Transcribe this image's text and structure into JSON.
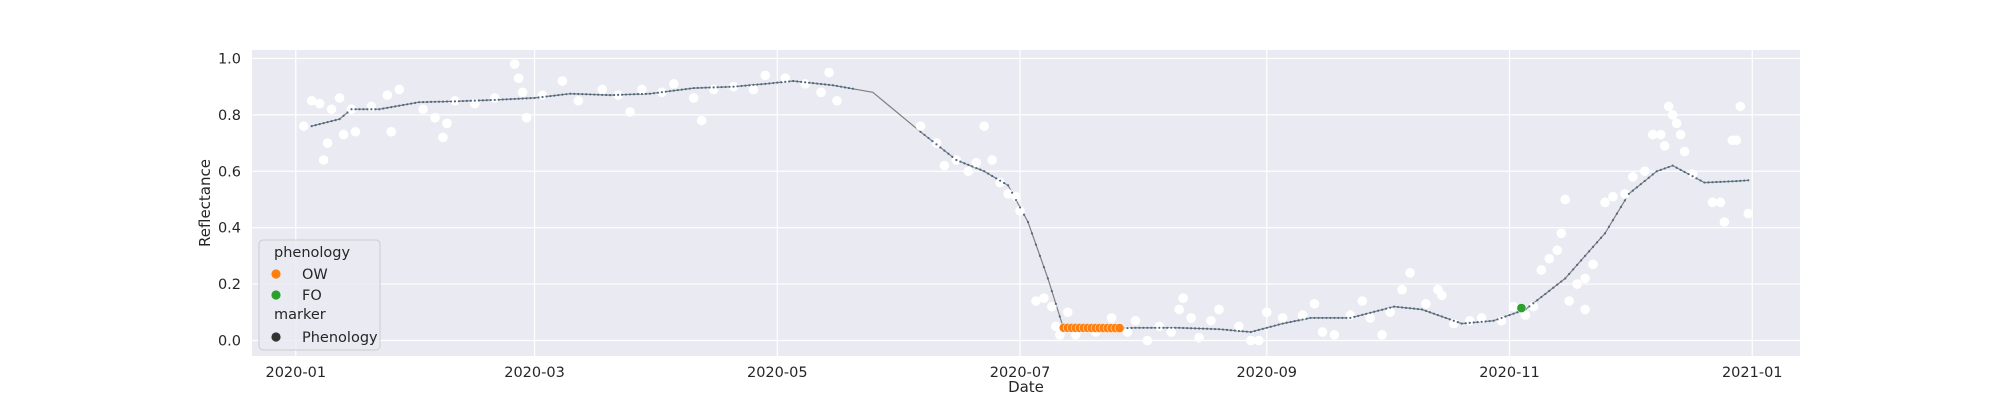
{
  "chart_data": {
    "type": "scatter",
    "title": "",
    "xlabel": "Date",
    "ylabel": "Reflectance",
    "x_type": "date",
    "xlim": [
      "2019-12-21",
      "2021-01-13"
    ],
    "ylim": [
      -0.055,
      1.03
    ],
    "x_ticks": [
      "2020-01",
      "2020-03",
      "2020-05",
      "2020-07",
      "2020-09",
      "2020-11",
      "2021-01"
    ],
    "y_ticks": [
      "0.0",
      "0.2",
      "0.4",
      "0.6",
      "0.8",
      "1.0"
    ],
    "grid": true,
    "legend_position": "lower-left",
    "colors": {
      "background": "#eaeaf2",
      "grid": "#ffffff",
      "raw_points": "#ffffff",
      "fitted_line": "#808080",
      "fitted_points": "#4c6a82",
      "OW": "#ff7f0e",
      "FO": "#2ca02c",
      "marker_Phenology": "#333333"
    },
    "legend": {
      "title_phenology": "phenology",
      "entries_phenology": [
        "OW",
        "FO"
      ],
      "title_marker": "marker",
      "entries_marker": [
        "Phenology"
      ]
    },
    "fitted_curve": [
      [
        "2020-01-05",
        0.76
      ],
      [
        "2020-01-12",
        0.785
      ],
      [
        "2020-01-15",
        0.82
      ],
      [
        "2020-01-22",
        0.82
      ],
      [
        "2020-02-01",
        0.845
      ],
      [
        "2020-02-10",
        0.848
      ],
      [
        "2020-02-20",
        0.853
      ],
      [
        "2020-03-01",
        0.86
      ],
      [
        "2020-03-10",
        0.875
      ],
      [
        "2020-03-20",
        0.87
      ],
      [
        "2020-03-30",
        0.875
      ],
      [
        "2020-04-10",
        0.895
      ],
      [
        "2020-04-20",
        0.9
      ],
      [
        "2020-04-28",
        0.91
      ],
      [
        "2020-05-05",
        0.92
      ],
      [
        "2020-05-15",
        0.905
      ],
      [
        "2020-05-25",
        0.88
      ],
      [
        "2020-06-06",
        0.74
      ],
      [
        "2020-06-15",
        0.64
      ],
      [
        "2020-06-22",
        0.6
      ],
      [
        "2020-06-28",
        0.55
      ],
      [
        "2020-07-03",
        0.42
      ],
      [
        "2020-07-08",
        0.22
      ],
      [
        "2020-07-12",
        0.04
      ],
      [
        "2020-07-20",
        0.04
      ],
      [
        "2020-07-30",
        0.045
      ],
      [
        "2020-08-10",
        0.045
      ],
      [
        "2020-08-20",
        0.04
      ],
      [
        "2020-08-28",
        0.03
      ],
      [
        "2020-09-05",
        0.06
      ],
      [
        "2020-09-12",
        0.08
      ],
      [
        "2020-09-22",
        0.08
      ],
      [
        "2020-10-03",
        0.12
      ],
      [
        "2020-10-10",
        0.11
      ],
      [
        "2020-10-20",
        0.06
      ],
      [
        "2020-10-28",
        0.07
      ],
      [
        "2020-11-05",
        0.11
      ],
      [
        "2020-11-15",
        0.22
      ],
      [
        "2020-11-25",
        0.38
      ],
      [
        "2020-12-01",
        0.52
      ],
      [
        "2020-12-08",
        0.6
      ],
      [
        "2020-12-12",
        0.62
      ],
      [
        "2020-12-20",
        0.56
      ],
      [
        "2020-12-28",
        0.565
      ],
      [
        "2020-12-31",
        0.568
      ]
    ],
    "raw_points": [
      [
        "2020-01-03",
        0.76
      ],
      [
        "2020-01-05",
        0.85
      ],
      [
        "2020-01-07",
        0.84
      ],
      [
        "2020-01-08",
        0.64
      ],
      [
        "2020-01-09",
        0.7
      ],
      [
        "2020-01-10",
        0.82
      ],
      [
        "2020-01-12",
        0.86
      ],
      [
        "2020-01-13",
        0.73
      ],
      [
        "2020-01-15",
        0.82
      ],
      [
        "2020-01-16",
        0.74
      ],
      [
        "2020-01-20",
        0.83
      ],
      [
        "2020-01-24",
        0.87
      ],
      [
        "2020-01-25",
        0.74
      ],
      [
        "2020-01-27",
        0.89
      ],
      [
        "2020-02-02",
        0.82
      ],
      [
        "2020-02-05",
        0.79
      ],
      [
        "2020-02-07",
        0.72
      ],
      [
        "2020-02-08",
        0.77
      ],
      [
        "2020-02-10",
        0.85
      ],
      [
        "2020-02-15",
        0.84
      ],
      [
        "2020-02-20",
        0.86
      ],
      [
        "2020-02-25",
        0.98
      ],
      [
        "2020-02-26",
        0.93
      ],
      [
        "2020-02-27",
        0.88
      ],
      [
        "2020-02-28",
        0.79
      ],
      [
        "2020-03-03",
        0.87
      ],
      [
        "2020-03-08",
        0.92
      ],
      [
        "2020-03-12",
        0.85
      ],
      [
        "2020-03-18",
        0.89
      ],
      [
        "2020-03-22",
        0.87
      ],
      [
        "2020-03-25",
        0.81
      ],
      [
        "2020-03-28",
        0.89
      ],
      [
        "2020-04-02",
        0.88
      ],
      [
        "2020-04-05",
        0.91
      ],
      [
        "2020-04-10",
        0.86
      ],
      [
        "2020-04-12",
        0.78
      ],
      [
        "2020-04-15",
        0.89
      ],
      [
        "2020-04-20",
        0.9
      ],
      [
        "2020-04-25",
        0.89
      ],
      [
        "2020-04-28",
        0.94
      ],
      [
        "2020-05-03",
        0.93
      ],
      [
        "2020-05-08",
        0.91
      ],
      [
        "2020-05-12",
        0.88
      ],
      [
        "2020-05-14",
        0.95
      ],
      [
        "2020-05-16",
        0.85
      ],
      [
        "2020-06-06",
        0.76
      ],
      [
        "2020-06-10",
        0.7
      ],
      [
        "2020-06-12",
        0.62
      ],
      [
        "2020-06-15",
        0.64
      ],
      [
        "2020-06-18",
        0.6
      ],
      [
        "2020-06-20",
        0.63
      ],
      [
        "2020-06-22",
        0.76
      ],
      [
        "2020-06-24",
        0.64
      ],
      [
        "2020-06-26",
        0.56
      ],
      [
        "2020-06-28",
        0.52
      ],
      [
        "2020-06-30",
        0.51
      ],
      [
        "2020-07-01",
        0.46
      ],
      [
        "2020-07-05",
        0.14
      ],
      [
        "2020-07-07",
        0.15
      ],
      [
        "2020-07-09",
        0.12
      ],
      [
        "2020-07-10",
        0.05
      ],
      [
        "2020-07-11",
        0.02
      ],
      [
        "2020-07-13",
        0.1
      ],
      [
        "2020-07-15",
        0.02
      ],
      [
        "2020-07-20",
        0.03
      ],
      [
        "2020-07-24",
        0.08
      ],
      [
        "2020-07-28",
        0.03
      ],
      [
        "2020-07-30",
        0.07
      ],
      [
        "2020-08-02",
        0.0
      ],
      [
        "2020-08-05",
        0.05
      ],
      [
        "2020-08-08",
        0.03
      ],
      [
        "2020-08-10",
        0.11
      ],
      [
        "2020-08-11",
        0.15
      ],
      [
        "2020-08-13",
        0.08
      ],
      [
        "2020-08-15",
        0.01
      ],
      [
        "2020-08-18",
        0.07
      ],
      [
        "2020-08-20",
        0.11
      ],
      [
        "2020-08-25",
        0.05
      ],
      [
        "2020-08-28",
        0.0
      ],
      [
        "2020-08-30",
        0.0
      ],
      [
        "2020-09-01",
        0.1
      ],
      [
        "2020-09-05",
        0.08
      ],
      [
        "2020-09-10",
        0.09
      ],
      [
        "2020-09-13",
        0.13
      ],
      [
        "2020-09-15",
        0.03
      ],
      [
        "2020-09-18",
        0.02
      ],
      [
        "2020-09-22",
        0.09
      ],
      [
        "2020-09-25",
        0.14
      ],
      [
        "2020-09-27",
        0.08
      ],
      [
        "2020-09-30",
        0.02
      ],
      [
        "2020-10-02",
        0.1
      ],
      [
        "2020-10-05",
        0.18
      ],
      [
        "2020-10-07",
        0.24
      ],
      [
        "2020-10-11",
        0.13
      ],
      [
        "2020-10-14",
        0.18
      ],
      [
        "2020-10-15",
        0.16
      ],
      [
        "2020-10-18",
        0.06
      ],
      [
        "2020-10-22",
        0.07
      ],
      [
        "2020-10-25",
        0.08
      ],
      [
        "2020-10-30",
        0.07
      ],
      [
        "2020-11-02",
        0.12
      ],
      [
        "2020-11-05",
        0.09
      ],
      [
        "2020-11-07",
        0.12
      ],
      [
        "2020-11-09",
        0.25
      ],
      [
        "2020-11-11",
        0.29
      ],
      [
        "2020-11-13",
        0.32
      ],
      [
        "2020-11-14",
        0.38
      ],
      [
        "2020-11-15",
        0.5
      ],
      [
        "2020-11-16",
        0.14
      ],
      [
        "2020-11-18",
        0.2
      ],
      [
        "2020-11-20",
        0.22
      ],
      [
        "2020-11-20",
        0.11
      ],
      [
        "2020-11-22",
        0.27
      ],
      [
        "2020-11-25",
        0.49
      ],
      [
        "2020-11-27",
        0.51
      ],
      [
        "2020-11-30",
        0.52
      ],
      [
        "2020-12-02",
        0.58
      ],
      [
        "2020-12-05",
        0.6
      ],
      [
        "2020-12-07",
        0.73
      ],
      [
        "2020-12-09",
        0.73
      ],
      [
        "2020-12-10",
        0.69
      ],
      [
        "2020-12-11",
        0.83
      ],
      [
        "2020-12-12",
        0.8
      ],
      [
        "2020-12-13",
        0.77
      ],
      [
        "2020-12-14",
        0.73
      ],
      [
        "2020-12-15",
        0.67
      ],
      [
        "2020-12-17",
        0.59
      ],
      [
        "2020-12-22",
        0.49
      ],
      [
        "2020-12-24",
        0.49
      ],
      [
        "2020-12-25",
        0.42
      ],
      [
        "2020-12-27",
        0.71
      ],
      [
        "2020-12-28",
        0.71
      ],
      [
        "2020-12-29",
        0.83
      ],
      [
        "2020-12-31",
        0.45
      ]
    ],
    "phenology_points": [
      {
        "label": "OW",
        "start": "2020-07-12",
        "end": "2020-07-26",
        "y_start": 0.045,
        "y_end": 0.044
      },
      {
        "label": "FO",
        "x": "2020-11-04",
        "y": 0.115
      }
    ],
    "gap": [
      "2020-05-20",
      "2020-06-06"
    ]
  }
}
